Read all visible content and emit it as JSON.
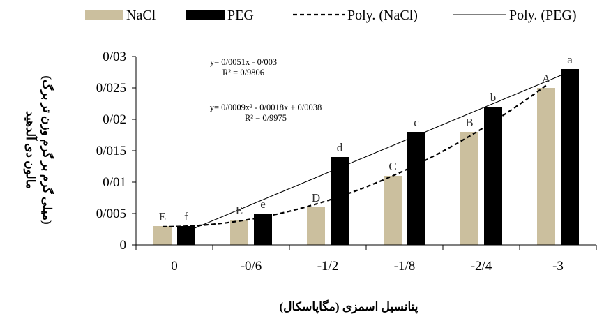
{
  "chart_data": {
    "type": "bar",
    "categories": [
      "0",
      "-0/6",
      "-1/2",
      "-1/8",
      "-2/4",
      "-3"
    ],
    "category_values": [
      0,
      -0.6,
      -1.2,
      -1.8,
      -2.4,
      -3
    ],
    "series": [
      {
        "name": "NaCl",
        "color": "#cbbf9e",
        "values": [
          0.003,
          0.004,
          0.006,
          0.011,
          0.018,
          0.025
        ],
        "letters": [
          "E",
          "E",
          "D",
          "C",
          "B",
          "A"
        ]
      },
      {
        "name": "PEG",
        "color": "#000000",
        "values": [
          0.003,
          0.005,
          0.014,
          0.018,
          0.022,
          0.028
        ],
        "letters": [
          "f",
          "e",
          "d",
          "c",
          "b",
          "a"
        ]
      }
    ],
    "trendlines": [
      {
        "name": "Poly. (NaCl)",
        "series": "NaCl",
        "order": 2,
        "style": "dashed",
        "coefficients": [
          0.0009,
          -0.0018,
          0.0038
        ],
        "equation": "y= 0/0009x² - 0/0018x + 0/0038",
        "r2": "R² = 0/9975"
      },
      {
        "name": "Poly. (PEG)",
        "series": "PEG",
        "order": 1,
        "style": "solid",
        "coefficients": [
          0.0051,
          -0.003
        ],
        "equation": "y= 0/0051x - 0/003",
        "r2": "R² = 0/9806"
      }
    ],
    "yticks": [
      {
        "value": 0,
        "label": "0"
      },
      {
        "value": 0.005,
        "label": "0/005"
      },
      {
        "value": 0.01,
        "label": "0/01"
      },
      {
        "value": 0.015,
        "label": "0/015"
      },
      {
        "value": 0.02,
        "label": "0/02"
      },
      {
        "value": 0.025,
        "label": "0/025"
      },
      {
        "value": 0.03,
        "label": "0/03"
      }
    ],
    "ylim": [
      0,
      0.03
    ],
    "xlabel": "پتانسیل اسمزی (مگاپاسکال)",
    "ylabel_line1": "مالون دی آلدهید",
    "ylabel_line2": "(میلی گرم بر گرم وزن تر برگ)",
    "legend_position": "top",
    "grid": false
  }
}
